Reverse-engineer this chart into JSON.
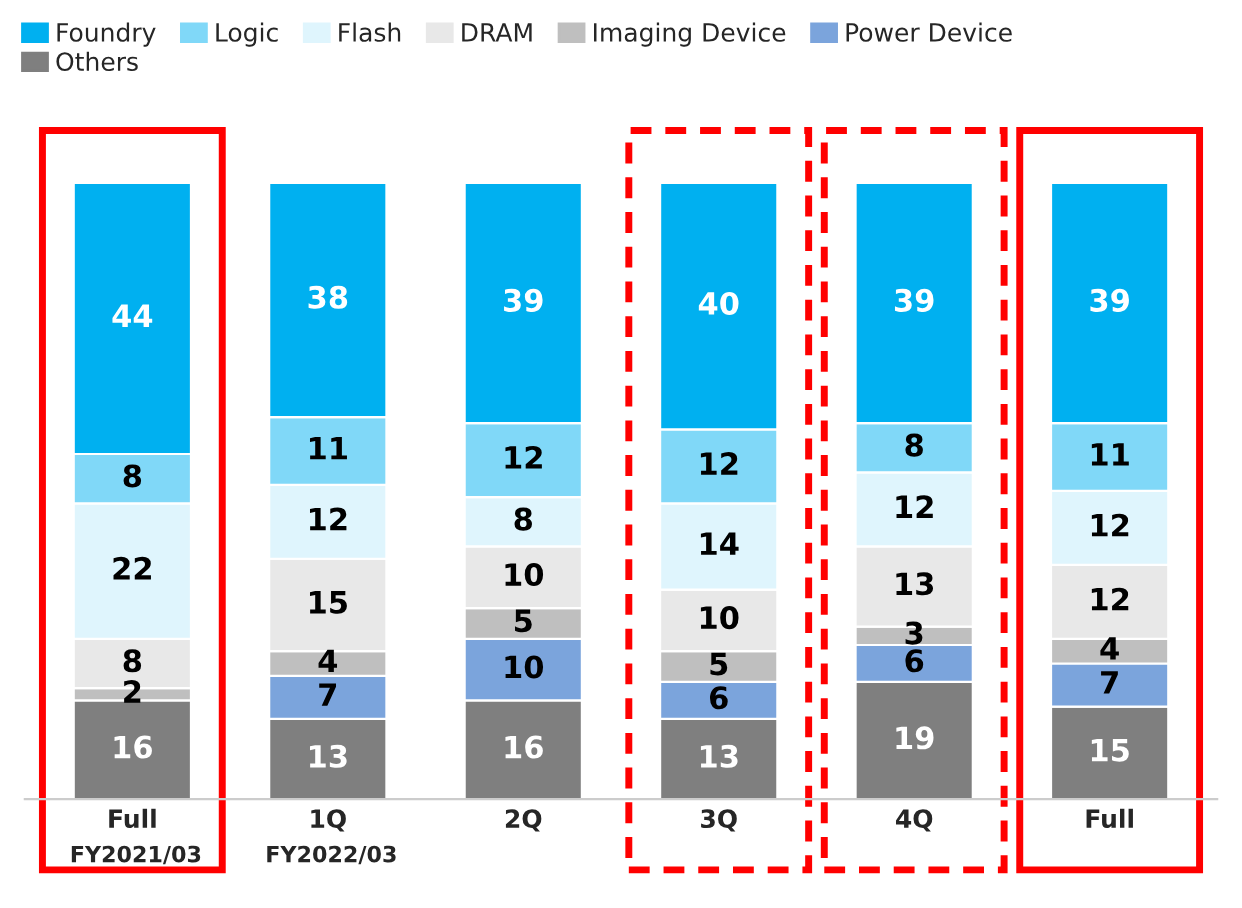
{
  "chart_data": {
    "type": "bar",
    "stacked": true,
    "data_labels": true,
    "legend": "top",
    "grid": false,
    "categories": [
      "Full",
      "1Q",
      "2Q",
      "3Q",
      "4Q",
      "Full"
    ],
    "series": [
      {
        "name": "Others",
        "color": "#7f7f7f",
        "values": [
          16,
          13,
          16,
          13,
          19,
          15
        ]
      },
      {
        "name": "Power Device",
        "color": "#7ba4dc",
        "values": [
          null,
          7,
          10,
          6,
          6,
          7
        ]
      },
      {
        "name": "Imaging Device",
        "color": "#bfbfbf",
        "values": [
          2,
          4,
          5,
          5,
          3,
          4
        ]
      },
      {
        "name": "DRAM",
        "color": "#e8e8e8",
        "values": [
          8,
          15,
          10,
          10,
          13,
          12
        ]
      },
      {
        "name": "Flash",
        "color": "#dff5fd",
        "values": [
          22,
          12,
          8,
          14,
          12,
          12
        ]
      },
      {
        "name": "Logic",
        "color": "#80d8f8",
        "values": [
          8,
          11,
          12,
          12,
          8,
          11
        ]
      },
      {
        "name": "Foundry",
        "color": "#00b0f0",
        "values": [
          44,
          38,
          39,
          40,
          39,
          39
        ]
      }
    ],
    "annotations": [
      "FY2021/03",
      "FY2022/03"
    ]
  }
}
